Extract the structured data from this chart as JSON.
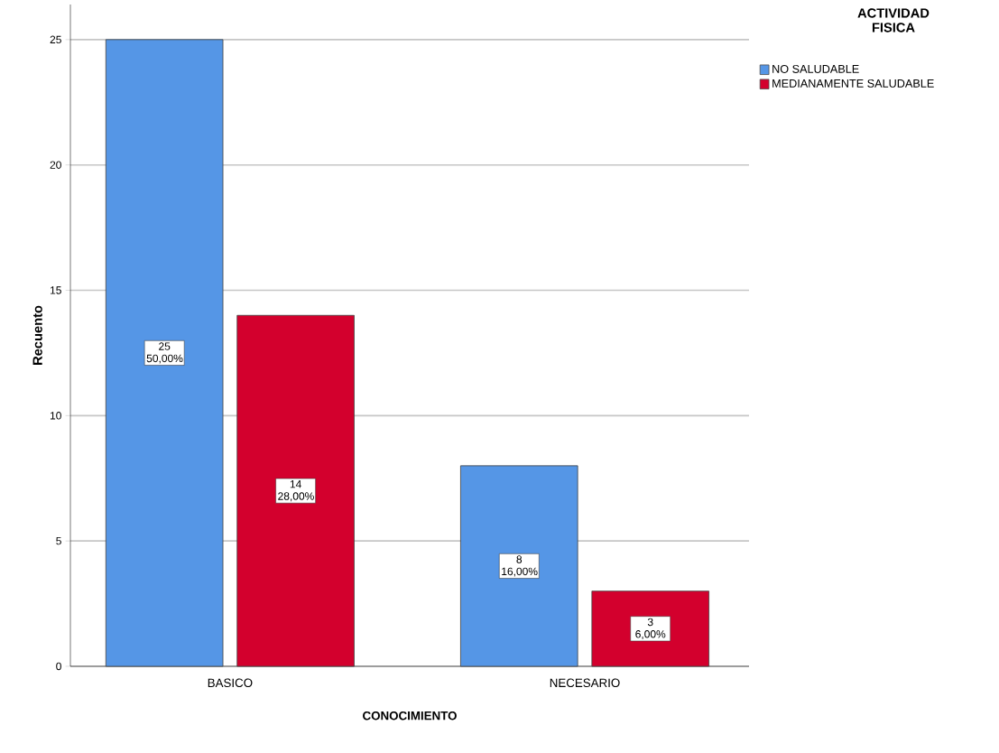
{
  "chart_data": {
    "type": "bar",
    "xlabel": "CONOCIMIENTO",
    "ylabel": "Recuento",
    "legend_title": "ACTIVIDAD FISICA",
    "categories": [
      "BASICO",
      "NECESARIO"
    ],
    "series": [
      {
        "name": "NO SALUDABLE",
        "color": "#5596e6",
        "values": [
          25,
          8
        ],
        "value_labels": [
          "25 50,00%",
          "8 16,00%"
        ]
      },
      {
        "name": "MEDIANAMENTE SALUDABLE",
        "color": "#d3002d",
        "values": [
          14,
          3
        ],
        "value_labels": [
          "14 28,00%",
          "3 6,00%"
        ]
      }
    ],
    "ylim": [
      0,
      26.4
    ],
    "yticks": [
      0,
      5,
      10,
      15,
      20,
      25
    ],
    "grid": "y",
    "legend": "top right"
  }
}
